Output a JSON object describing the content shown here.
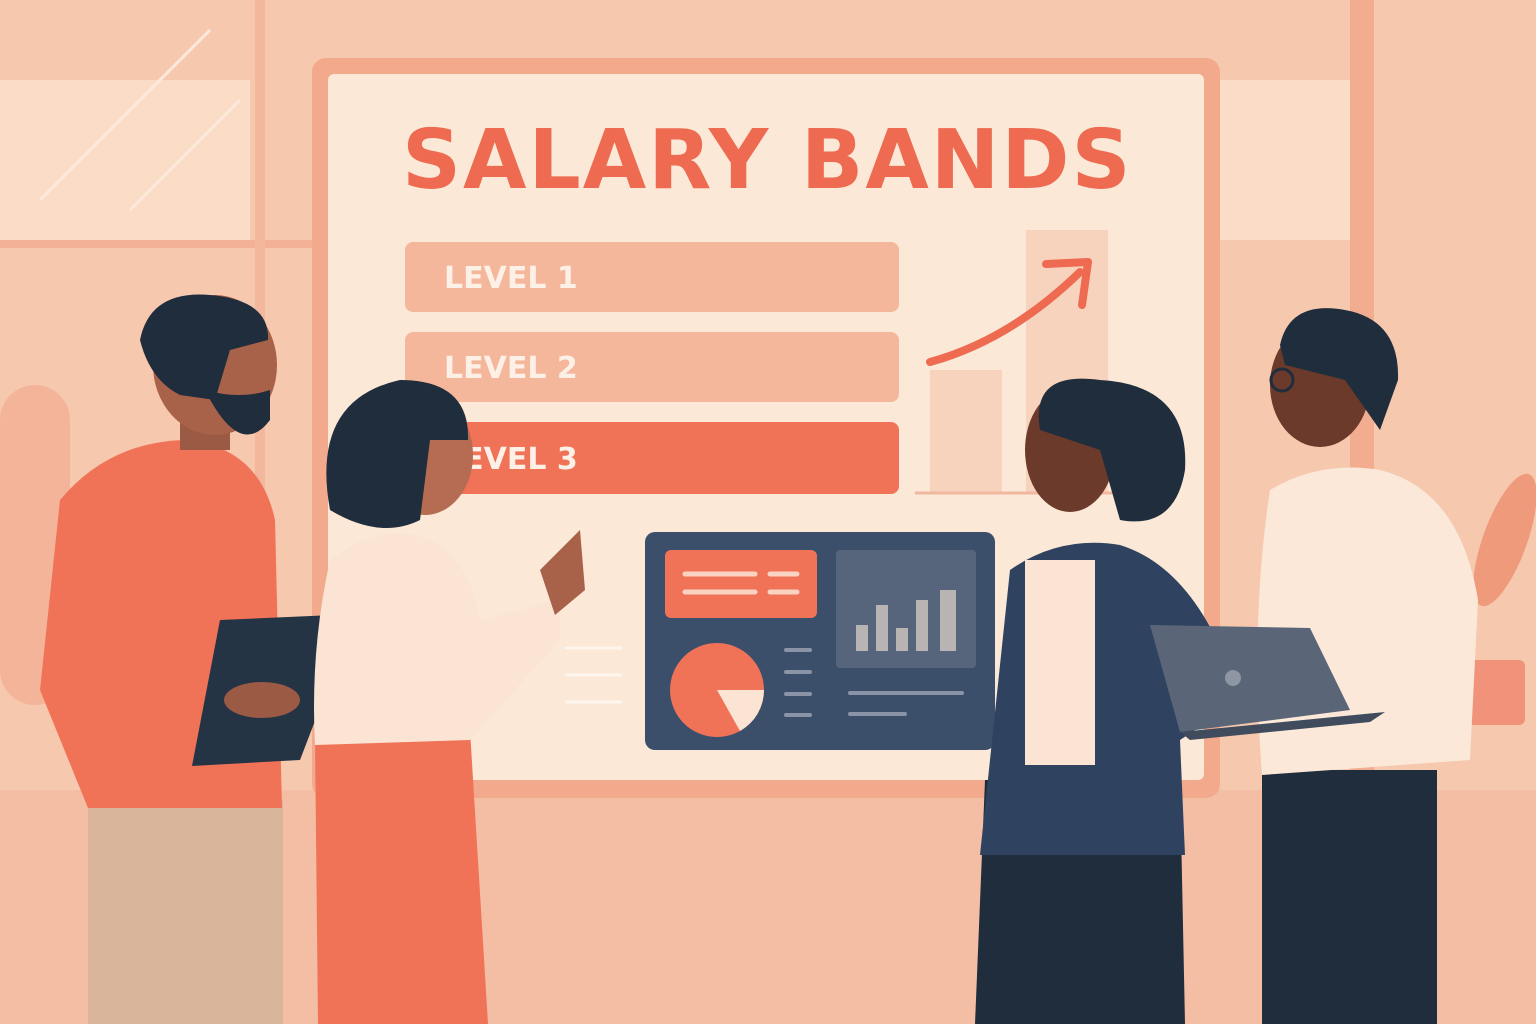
{
  "board": {
    "title": "SALARY BANDS",
    "levels": [
      {
        "label": "LEVEL 1",
        "color": "#f5b79c"
      },
      {
        "label": "LEVEL 2",
        "color": "#f5b79c"
      },
      {
        "label": "LEVEL 3",
        "color": "#f07358"
      }
    ]
  },
  "colors": {
    "background": "#f6c8ae",
    "board": "#fbe8d6",
    "accent": "#ee6a50",
    "navy": "#1f2d3d",
    "dashboard": "#3b4f6b"
  }
}
